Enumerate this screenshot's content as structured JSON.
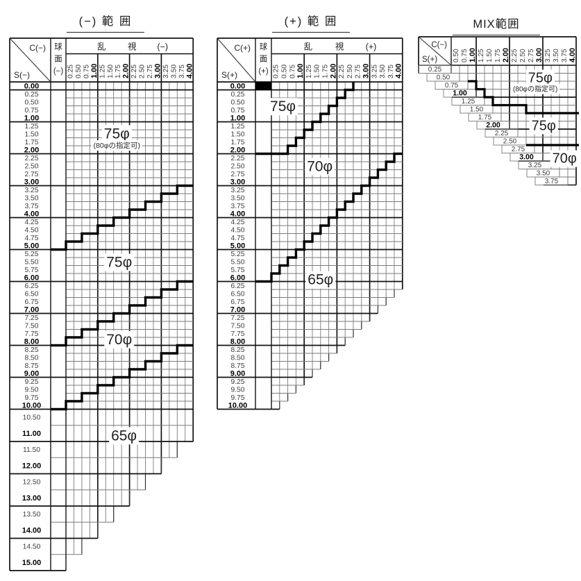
{
  "chart_data": [
    {
      "type": "table",
      "name": "chart-minus-range",
      "title": "(−) 範 囲",
      "corner_top": "C(−)",
      "corner_bottom": "S(−)",
      "sphere_header": [
        "球",
        "面",
        "(−)"
      ],
      "astig_header": [
        "乱",
        "視",
        "(−)"
      ],
      "cols": [
        [
          "0.25"
        ],
        [
          "0.50"
        ],
        [
          "0.75"
        ],
        [
          "1.00",
          1
        ],
        [
          "1.25"
        ],
        [
          "1.50"
        ],
        [
          "1.75"
        ],
        [
          "2.00",
          1
        ],
        [
          "2.25"
        ],
        [
          "2.50"
        ],
        [
          "2.75"
        ],
        [
          "3.00",
          1
        ],
        [
          "3.25"
        ],
        [
          "3.50"
        ],
        [
          "3.75"
        ],
        [
          "4.00",
          1
        ]
      ],
      "rows": [
        [
          "0.00",
          1
        ],
        [
          "0.25"
        ],
        [
          "0.50"
        ],
        [
          "0.75"
        ],
        [
          "1.00",
          1
        ],
        [
          "1.25"
        ],
        [
          "1.50"
        ],
        [
          "1.75"
        ],
        [
          "2.00",
          1
        ],
        [
          "2.25"
        ],
        [
          "2.50"
        ],
        [
          "2.75"
        ],
        [
          "3.00",
          1
        ],
        [
          "3.25"
        ],
        [
          "3.50"
        ],
        [
          "3.75"
        ],
        [
          "4.00",
          1
        ],
        [
          "4.25"
        ],
        [
          "4.50"
        ],
        [
          "4.75"
        ],
        [
          "5.00",
          1
        ],
        [
          "5.25"
        ],
        [
          "5.50"
        ],
        [
          "5.75"
        ],
        [
          "6.00",
          1
        ],
        [
          "6.25"
        ],
        [
          "6.50"
        ],
        [
          "6.75"
        ],
        [
          "7.00",
          1
        ],
        [
          "7.25"
        ],
        [
          "7.50"
        ],
        [
          "7.75"
        ],
        [
          "8.00",
          1
        ],
        [
          "8.25"
        ],
        [
          "8.50"
        ],
        [
          "8.75"
        ],
        [
          "9.00",
          1
        ],
        [
          "9.25"
        ],
        [
          "9.50"
        ],
        [
          "9.75"
        ],
        [
          "10.00",
          1
        ],
        [
          "10.50",
          0,
          1,
          16
        ],
        [
          "11.00",
          1,
          1,
          16
        ],
        [
          "11.50",
          0,
          1,
          14
        ],
        [
          "12.00",
          1,
          1,
          12
        ],
        [
          "12.50",
          0,
          1,
          10
        ],
        [
          "13.00",
          1,
          1,
          8
        ],
        [
          "13.50",
          0,
          1,
          6
        ],
        [
          "14.00",
          1,
          1,
          4
        ],
        [
          "14.50",
          0,
          1,
          2
        ],
        [
          "15.00",
          1,
          1,
          0
        ]
      ],
      "boundaries": [
        {
          "points": [
            [
              16,
              13
            ],
            [
              14,
              13
            ],
            [
              14,
              14
            ],
            [
              12,
              14
            ],
            [
              12,
              15
            ],
            [
              10,
              15
            ],
            [
              10,
              16
            ],
            [
              8,
              16
            ],
            [
              8,
              17
            ],
            [
              6,
              17
            ],
            [
              6,
              18
            ],
            [
              4,
              18
            ],
            [
              4,
              19
            ],
            [
              2,
              19
            ],
            [
              2,
              20
            ],
            [
              0,
              20
            ],
            [
              0,
              21
            ],
            [
              "S",
              21
            ]
          ]
        },
        {
          "points": [
            [
              16,
              25
            ],
            [
              14,
              25
            ],
            [
              14,
              26
            ],
            [
              12,
              26
            ],
            [
              12,
              27
            ],
            [
              10,
              27
            ],
            [
              10,
              28
            ],
            [
              8,
              28
            ],
            [
              8,
              29
            ],
            [
              6,
              29
            ],
            [
              6,
              30
            ],
            [
              4,
              30
            ],
            [
              4,
              31
            ],
            [
              2,
              31
            ],
            [
              2,
              32
            ],
            [
              0,
              32
            ],
            [
              0,
              33
            ],
            [
              "S",
              33
            ]
          ]
        },
        {
          "points": [
            [
              16,
              33
            ],
            [
              14,
              33
            ],
            [
              14,
              34
            ],
            [
              12,
              34
            ],
            [
              12,
              35
            ],
            [
              10,
              35
            ],
            [
              10,
              36
            ],
            [
              8,
              36
            ],
            [
              8,
              37
            ],
            [
              6,
              37
            ],
            [
              6,
              38
            ],
            [
              4,
              38
            ],
            [
              4,
              39
            ],
            [
              2,
              39
            ],
            [
              2,
              40
            ],
            [
              0,
              40
            ],
            [
              0,
              41
            ],
            [
              "S",
              41
            ]
          ]
        }
      ],
      "regions": [
        {
          "text": "75φ",
          "c": 6.4,
          "r": 6.5,
          "fs": 21
        },
        {
          "text": "(80φの指定可)",
          "c": 6.4,
          "r": 8.0,
          "fs": 10.5
        },
        {
          "text": "75φ",
          "c": 6.7,
          "r": 22.6,
          "fs": 21
        },
        {
          "text": "70φ",
          "c": 6.7,
          "r": 32.3,
          "fs": 21
        },
        {
          "text": "65φ",
          "c": 7.3,
          "r": 42.65,
          "fs": 21
        }
      ],
      "black_cells": []
    },
    {
      "type": "table",
      "name": "chart-plus-range",
      "title": "(+) 範 囲",
      "corner_top": "C(+)",
      "corner_bottom": "S(+)",
      "sphere_header": [
        "球",
        "面",
        "(+)"
      ],
      "astig_header": [
        "乱",
        "視",
        "(+)"
      ],
      "cols": [
        [
          "0.25"
        ],
        [
          "0.50"
        ],
        [
          "0.75"
        ],
        [
          "1.00",
          1
        ],
        [
          "1.25"
        ],
        [
          "1.50"
        ],
        [
          "1.75"
        ],
        [
          "2.00",
          1
        ],
        [
          "2.25"
        ],
        [
          "2.50"
        ],
        [
          "2.75"
        ],
        [
          "3.00",
          1
        ],
        [
          "3.25"
        ],
        [
          "3.50"
        ],
        [
          "3.75"
        ],
        [
          "4.00",
          1
        ]
      ],
      "rows": [
        [
          "0.00",
          1
        ],
        [
          "0.25"
        ],
        [
          "0.50"
        ],
        [
          "0.75"
        ],
        [
          "1.00",
          1
        ],
        [
          "1.25"
        ],
        [
          "1.50"
        ],
        [
          "1.75"
        ],
        [
          "2.00",
          1
        ],
        [
          "2.25"
        ],
        [
          "2.50"
        ],
        [
          "2.75"
        ],
        [
          "3.00",
          1
        ],
        [
          "3.25"
        ],
        [
          "3.50"
        ],
        [
          "3.75"
        ],
        [
          "4.00",
          1
        ],
        [
          "4.25"
        ],
        [
          "4.50"
        ],
        [
          "4.75"
        ],
        [
          "5.00",
          1
        ],
        [
          "5.25"
        ],
        [
          "5.50"
        ],
        [
          "5.75"
        ],
        [
          "6.00",
          1
        ],
        [
          "6.25"
        ],
        [
          "6.50",
          0,
          0,
          15
        ],
        [
          "6.75",
          0,
          0,
          14
        ],
        [
          "7.00",
          1,
          0,
          13
        ],
        [
          "7.25",
          0,
          0,
          12
        ],
        [
          "7.50",
          0,
          0,
          11
        ],
        [
          "7.75",
          0,
          0,
          10
        ],
        [
          "8.00",
          1,
          0,
          9
        ],
        [
          "8.25",
          0,
          0,
          8
        ],
        [
          "8.50",
          0,
          0,
          7
        ],
        [
          "8.75",
          0,
          0,
          6
        ],
        [
          "9.00",
          1,
          0,
          5
        ],
        [
          "9.25",
          0,
          0,
          4
        ],
        [
          "9.50",
          0,
          0,
          3
        ],
        [
          "9.75",
          0,
          0,
          2
        ],
        [
          "10.00",
          1,
          0,
          1
        ]
      ],
      "boundaries": [
        {
          "points": [
            [
              10,
              0
            ],
            [
              10,
              1
            ],
            [
              9,
              1
            ],
            [
              9,
              2
            ],
            [
              8,
              2
            ],
            [
              8,
              3
            ],
            [
              7,
              3
            ],
            [
              7,
              4
            ],
            [
              6,
              4
            ],
            [
              6,
              5
            ],
            [
              5,
              5
            ],
            [
              5,
              6
            ],
            [
              4,
              6
            ],
            [
              4,
              7
            ],
            [
              3,
              7
            ],
            [
              3,
              8
            ],
            [
              2,
              8
            ],
            [
              2,
              9
            ],
            [
              "S",
              9
            ]
          ]
        },
        {
          "points": [
            [
              16,
              9
            ],
            [
              15,
              9
            ],
            [
              15,
              10
            ],
            [
              14,
              10
            ],
            [
              14,
              11
            ],
            [
              13,
              11
            ],
            [
              13,
              12
            ],
            [
              12,
              12
            ],
            [
              12,
              13
            ],
            [
              11,
              13
            ],
            [
              11,
              14
            ],
            [
              10,
              14
            ],
            [
              10,
              15
            ],
            [
              9,
              15
            ],
            [
              9,
              16
            ],
            [
              8,
              16
            ],
            [
              8,
              17
            ],
            [
              7,
              17
            ],
            [
              7,
              18
            ],
            [
              6,
              18
            ],
            [
              6,
              19
            ],
            [
              5,
              19
            ],
            [
              5,
              20
            ],
            [
              4,
              20
            ],
            [
              4,
              21
            ],
            [
              3,
              21
            ],
            [
              3,
              22
            ],
            [
              2,
              22
            ],
            [
              2,
              23
            ],
            [
              1,
              23
            ],
            [
              1,
              24
            ],
            [
              0,
              24
            ],
            [
              0,
              25
            ],
            [
              "S",
              25
            ]
          ]
        }
      ],
      "regions": [
        {
          "text": "75φ",
          "c": 1.4,
          "r": 3.1,
          "fs": 21
        },
        {
          "text": "70φ",
          "c": 5.9,
          "r": 10.6,
          "fs": 21
        },
        {
          "text": "65φ",
          "c": 6.0,
          "r": 24.8,
          "fs": 21
        }
      ],
      "black_cells": [
        {
          "row": 0,
          "col": "sphere"
        }
      ]
    },
    {
      "type": "table",
      "name": "chart-mix-range",
      "title": "MIX範囲",
      "corner_top": "C(−)",
      "corner_bottom": "S(+)",
      "cols": [
        [
          "0.50"
        ],
        [
          "0.75"
        ],
        [
          "1.00",
          1
        ],
        [
          "1.25"
        ],
        [
          "1.50"
        ],
        [
          "1.75"
        ],
        [
          "2.00",
          1
        ],
        [
          "2.25"
        ],
        [
          "2.50"
        ],
        [
          "2.75"
        ],
        [
          "3.00",
          1
        ],
        [
          "3.25"
        ],
        [
          "3.50"
        ],
        [
          "3.75"
        ],
        [
          "4.00",
          1
        ]
      ],
      "rows": [
        [
          "0.25"
        ],
        [
          "0.50"
        ],
        [
          "0.75"
        ],
        [
          "1.00",
          1
        ],
        [
          "1.25"
        ],
        [
          "1.50"
        ],
        [
          "1.75"
        ],
        [
          "2.00",
          1
        ],
        [
          "2.25"
        ],
        [
          "2.50"
        ],
        [
          "2.75"
        ],
        [
          "3.00",
          1
        ],
        [
          "3.25"
        ],
        [
          "3.50"
        ],
        [
          "3.75"
        ]
      ],
      "boundaries": [
        {
          "points": [
            [
              2,
              2
            ],
            [
              3,
              2
            ],
            [
              3,
              3
            ],
            [
              4,
              3
            ],
            [
              4,
              4
            ],
            [
              5,
              4
            ],
            [
              5,
              5
            ],
            [
              9,
              5
            ],
            [
              9,
              6
            ],
            [
              "R",
              6
            ]
          ]
        },
        {
          "points": [
            [
              9,
              10
            ],
            [
              "R",
              10
            ]
          ]
        }
      ],
      "regions": [
        {
          "text": "75φ",
          "c": 10.7,
          "r": 1.6,
          "fs": 20
        },
        {
          "text": "(80φの指定可)",
          "c": 10.1,
          "r": 3.05,
          "fs": 10
        },
        {
          "text": "75φ",
          "c": 11.1,
          "r": 7.6,
          "fs": 20
        },
        {
          "text": "70φ",
          "c": 13.6,
          "r": 11.7,
          "fs": 20
        }
      ]
    }
  ]
}
